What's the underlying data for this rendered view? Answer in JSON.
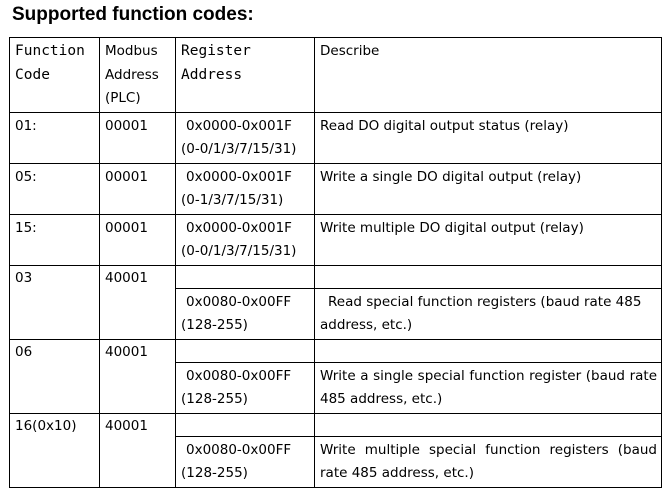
{
  "title": "Supported function codes:",
  "header": {
    "col1": [
      "Function",
      "Code"
    ],
    "col2": [
      "Modbus",
      "Address",
      "(PLC)"
    ],
    "col3": [
      "Register",
      "Address"
    ],
    "col4": "Describe"
  },
  "rows": [
    {
      "code": "01:",
      "address": "00001",
      "register": [
        "0x0000-0x001F",
        "(0-0/1/3/7/15/31)"
      ],
      "describe": "Read DO digital output status (relay)"
    },
    {
      "code": "05:",
      "address": "00001",
      "register": [
        "0x0000-0x001F",
        "(0-1/3/7/15/31)"
      ],
      "describe": "Write a single DO digital output (relay)"
    },
    {
      "code": "15:",
      "address": "00001",
      "register": [
        "0x0000-0x001F",
        "(0-0/1/3/7/15/31)"
      ],
      "describe": "Write multiple DO digital output (relay)"
    },
    {
      "code": "03",
      "address": "40001",
      "register": [
        "0x0080-0x00FF",
        "(128-255)"
      ],
      "describe": "Read special function registers (baud rate 485 address, etc.)"
    },
    {
      "code": "06",
      "address": "40001",
      "register": [
        "0x0080-0x00FF",
        "(128-255)"
      ],
      "describe": "Write a single special function register (baud rate 485 address, etc.)"
    },
    {
      "code": "16(0x10)",
      "address": "40001",
      "register": [
        "0x0080-0x00FF",
        "(128-255)"
      ],
      "describe": "Write multiple special function registers (baud rate 485 address, etc.)"
    }
  ]
}
